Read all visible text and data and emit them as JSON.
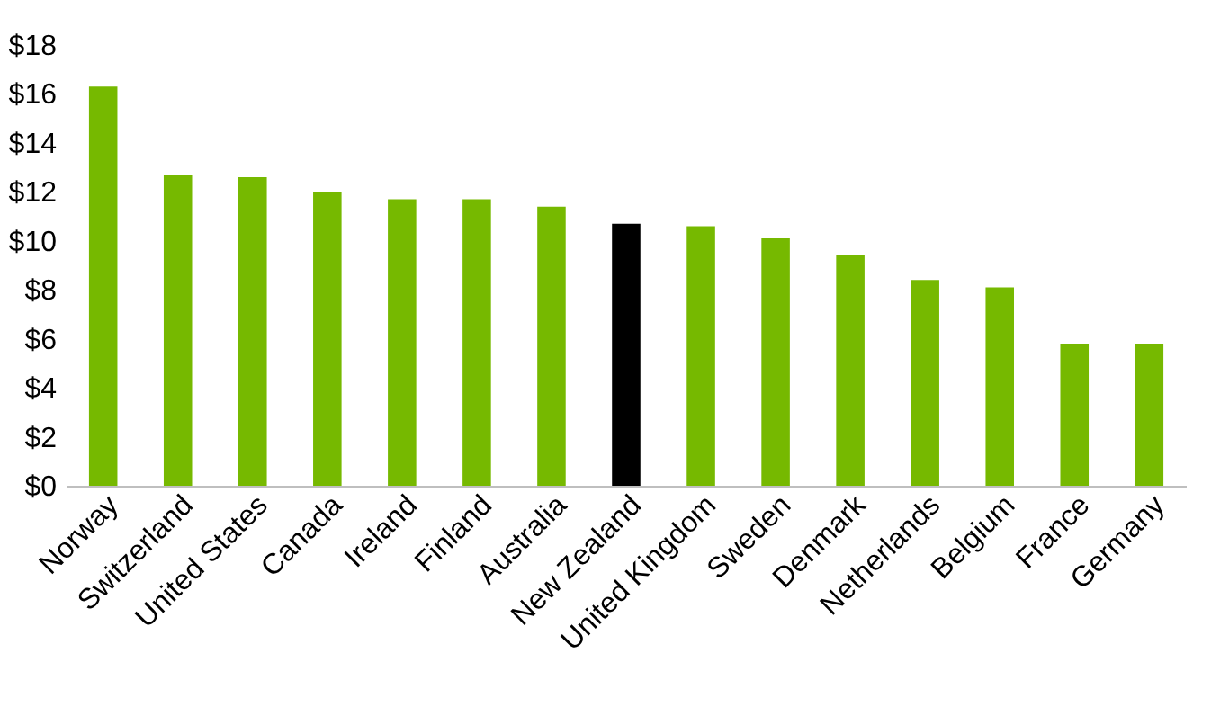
{
  "chart_data": {
    "type": "bar",
    "categories": [
      "Norway",
      "Switzerland",
      "United States",
      "Canada",
      "Ireland",
      "Finland",
      "Australia",
      "New Zealand",
      "United Kingdom",
      "Sweden",
      "Denmark",
      "Netherlands",
      "Belgium",
      "France",
      "Germany"
    ],
    "values": [
      16.3,
      12.7,
      12.6,
      12.0,
      11.7,
      11.7,
      11.4,
      10.7,
      10.6,
      10.1,
      9.4,
      8.4,
      8.1,
      5.8,
      5.8
    ],
    "colors": [
      "#76b900",
      "#76b900",
      "#76b900",
      "#76b900",
      "#76b900",
      "#76b900",
      "#76b900",
      "#000000",
      "#76b900",
      "#76b900",
      "#76b900",
      "#76b900",
      "#76b900",
      "#76b900",
      "#76b900"
    ],
    "ylim": [
      0,
      18
    ],
    "yticks": [
      {
        "value": 0,
        "label": "$0"
      },
      {
        "value": 2,
        "label": "$2"
      },
      {
        "value": 4,
        "label": "$4"
      },
      {
        "value": 6,
        "label": "$6"
      },
      {
        "value": 8,
        "label": "$8"
      },
      {
        "value": 10,
        "label": "$10"
      },
      {
        "value": 12,
        "label": "$12"
      },
      {
        "value": 14,
        "label": "$14"
      },
      {
        "value": 16,
        "label": "$16"
      },
      {
        "value": 18,
        "label": "$18"
      }
    ],
    "grid": false
  }
}
